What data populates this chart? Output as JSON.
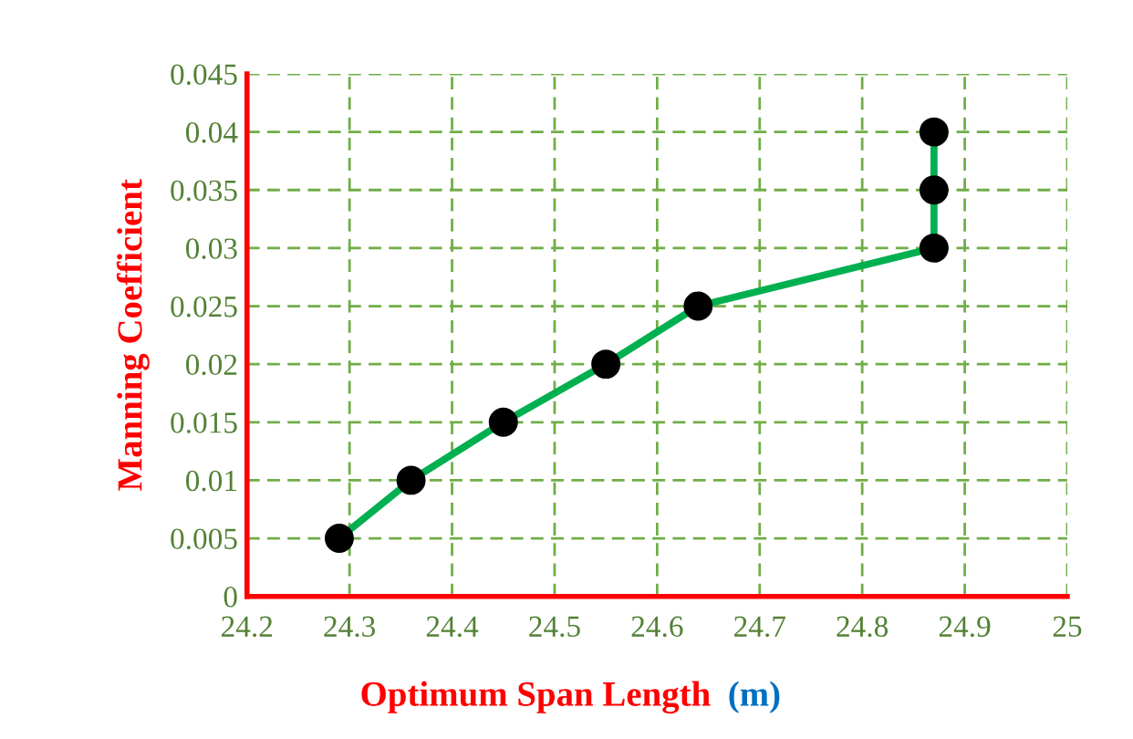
{
  "chart_data": {
    "type": "line",
    "xlabel": "Optimum Span Length (m)",
    "ylabel": "Manning Coefficient",
    "x": [
      24.29,
      24.36,
      24.45,
      24.55,
      24.64,
      24.87,
      24.87,
      24.87
    ],
    "series": [
      {
        "color": "#00b050",
        "values": [
          0.005,
          0.01,
          0.015,
          0.02,
          0.025,
          0.03,
          0.035,
          0.04
        ]
      }
    ],
    "xlim": [
      24.2,
      25
    ],
    "xticks": [
      24.2,
      24.3,
      24.4,
      24.5,
      24.6,
      24.7,
      24.8,
      24.9,
      25
    ],
    "ylim": [
      0,
      0.045
    ],
    "yticks": [
      0,
      0.005,
      0.01,
      0.015,
      0.02,
      0.025,
      0.03,
      0.035,
      0.04,
      0.045
    ],
    "grid": true,
    "marker": "circle",
    "line_style": "solid",
    "legend": false
  }
}
